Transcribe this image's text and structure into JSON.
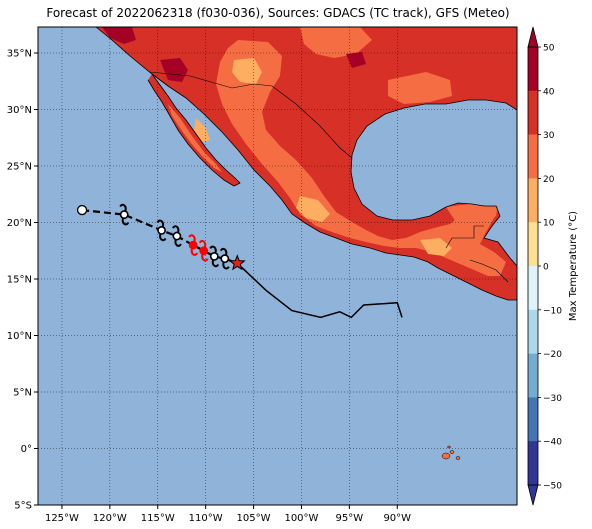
{
  "title": "Forecast of 2022062318 (f030-036), Sources: GDACS (TC track), GFS (Meteo)",
  "map": {
    "lon_ticks": [
      {
        "label": "125°W",
        "value": -125
      },
      {
        "label": "120°W",
        "value": -120
      },
      {
        "label": "115°W",
        "value": -115
      },
      {
        "label": "110°W",
        "value": -110
      },
      {
        "label": "105°W",
        "value": -105
      },
      {
        "label": "100°W",
        "value": -100
      },
      {
        "label": "95°W",
        "value": -95
      },
      {
        "label": "90°W",
        "value": -90
      }
    ],
    "lat_ticks": [
      {
        "label": "35°N",
        "value": 35
      },
      {
        "label": "30°N",
        "value": 30
      },
      {
        "label": "25°N",
        "value": 25
      },
      {
        "label": "20°N",
        "value": 20
      },
      {
        "label": "15°N",
        "value": 15
      },
      {
        "label": "10°N",
        "value": 10
      },
      {
        "label": "5°N",
        "value": 5
      },
      {
        "label": "0°",
        "value": 0
      },
      {
        "label": "5°S",
        "value": -5
      }
    ],
    "lon_range": [
      -127.5,
      -77.5
    ],
    "lat_range": [
      -5,
      37.3
    ]
  },
  "colorbar": {
    "label": "Max Temperature (°C)",
    "ticks": [
      "50",
      "40",
      "30",
      "20",
      "10",
      "0",
      "−10",
      "−20",
      "−30",
      "−40",
      "−50"
    ],
    "colors": [
      "#a50026",
      "#d73027",
      "#f46d43",
      "#fdae61",
      "#fee090",
      "#ffffbf",
      "#e0f3f8",
      "#abd9e9",
      "#74add1",
      "#4575b4",
      "#313695"
    ],
    "ocean_color": "#8fb3d9"
  },
  "track": {
    "past": [
      {
        "lon": -106.7,
        "lat": 16.4
      },
      {
        "lon": -103.7,
        "lat": 14.0
      },
      {
        "lon": -101.0,
        "lat": 12.2
      },
      {
        "lon": -98.0,
        "lat": 11.6
      },
      {
        "lon": -96.0,
        "lat": 12.1
      },
      {
        "lon": -94.8,
        "lat": 11.6
      },
      {
        "lon": -93.5,
        "lat": 12.7
      },
      {
        "lon": -90.0,
        "lat": 12.9
      },
      {
        "lon": -89.5,
        "lat": 11.6
      }
    ],
    "forecast": [
      {
        "lon": -122.9,
        "lat": 21.1
      },
      {
        "lon": -118.5,
        "lat": 20.7
      },
      {
        "lon": -114.6,
        "lat": 19.3
      },
      {
        "lon": -113.0,
        "lat": 18.8
      },
      {
        "lon": -111.3,
        "lat": 18.0
      },
      {
        "lon": -110.2,
        "lat": 17.5
      },
      {
        "lon": -109.1,
        "lat": 17.0
      },
      {
        "lon": -108.0,
        "lat": 16.8
      },
      {
        "lon": -106.7,
        "lat": 16.4
      }
    ],
    "markers": [
      {
        "type": "low",
        "lon": -122.9,
        "lat": 21.1,
        "color": "#000000"
      },
      {
        "type": "storm",
        "lon": -118.5,
        "lat": 20.7,
        "color": "#000000"
      },
      {
        "type": "storm",
        "lon": -114.6,
        "lat": 19.3,
        "color": "#000000"
      },
      {
        "type": "storm",
        "lon": -113.0,
        "lat": 18.8,
        "color": "#000000"
      },
      {
        "type": "hurricane",
        "lon": -111.3,
        "lat": 18.0,
        "color": "#ff0000"
      },
      {
        "type": "hurricane",
        "lon": -110.2,
        "lat": 17.5,
        "color": "#ff0000"
      },
      {
        "type": "storm",
        "lon": -109.1,
        "lat": 17.0,
        "color": "#000000"
      },
      {
        "type": "storm",
        "lon": -108.0,
        "lat": 16.8,
        "color": "#000000"
      },
      {
        "type": "current-position-star",
        "lon": -106.7,
        "lat": 16.4,
        "color": "#e8201c"
      }
    ]
  }
}
